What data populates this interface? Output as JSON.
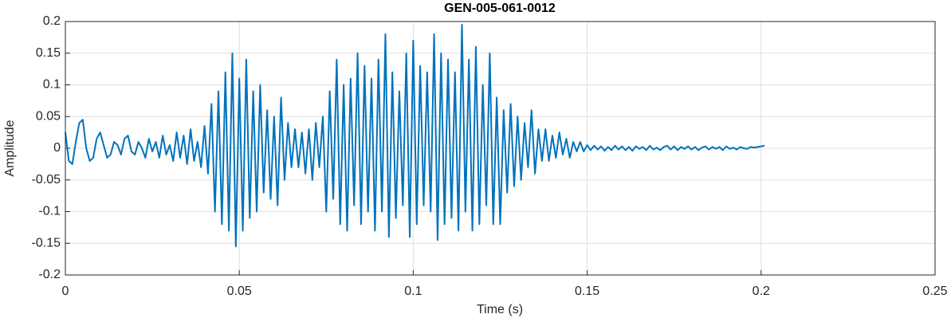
{
  "chart_data": {
    "type": "line",
    "title": "GEN-005-061-0012",
    "xlabel": "Time (s)",
    "ylabel": "Amplitude",
    "color": "#0072bd",
    "grid": true,
    "xlim": [
      0,
      0.25
    ],
    "ylim": [
      -0.2,
      0.2
    ],
    "xticks": [
      0,
      0.05,
      0.1,
      0.15,
      0.2,
      0.25
    ],
    "yticks": [
      -0.2,
      -0.15,
      -0.1,
      -0.05,
      0,
      0.05,
      0.1,
      0.15,
      0.2
    ],
    "x": [
      0,
      0.001,
      0.002,
      0.003,
      0.004,
      0.005,
      0.006,
      0.007,
      0.008,
      0.009,
      0.01,
      0.011,
      0.012,
      0.013,
      0.014,
      0.015,
      0.016,
      0.017,
      0.018,
      0.019,
      0.02,
      0.021,
      0.022,
      0.023,
      0.024,
      0.025,
      0.026,
      0.027,
      0.028,
      0.029,
      0.03,
      0.031,
      0.032,
      0.033,
      0.034,
      0.035,
      0.036,
      0.037,
      0.038,
      0.039,
      0.04,
      0.041,
      0.042,
      0.043,
      0.044,
      0.045,
      0.046,
      0.047,
      0.048,
      0.049,
      0.05,
      0.051,
      0.052,
      0.053,
      0.054,
      0.055,
      0.056,
      0.057,
      0.058,
      0.059,
      0.06,
      0.061,
      0.062,
      0.063,
      0.064,
      0.065,
      0.066,
      0.067,
      0.068,
      0.069,
      0.07,
      0.071,
      0.072,
      0.073,
      0.074,
      0.075,
      0.076,
      0.077,
      0.078,
      0.079,
      0.08,
      0.081,
      0.082,
      0.083,
      0.084,
      0.085,
      0.086,
      0.087,
      0.088,
      0.089,
      0.09,
      0.091,
      0.092,
      0.093,
      0.094,
      0.095,
      0.096,
      0.097,
      0.098,
      0.099,
      0.1,
      0.101,
      0.102,
      0.103,
      0.104,
      0.105,
      0.106,
      0.107,
      0.108,
      0.109,
      0.11,
      0.111,
      0.112,
      0.113,
      0.114,
      0.115,
      0.116,
      0.117,
      0.118,
      0.119,
      0.12,
      0.121,
      0.122,
      0.123,
      0.124,
      0.125,
      0.126,
      0.127,
      0.128,
      0.129,
      0.13,
      0.131,
      0.132,
      0.133,
      0.134,
      0.135,
      0.136,
      0.137,
      0.138,
      0.139,
      0.14,
      0.141,
      0.142,
      0.143,
      0.144,
      0.145,
      0.146,
      0.147,
      0.148,
      0.149,
      0.15,
      0.151,
      0.152,
      0.153,
      0.154,
      0.155,
      0.156,
      0.157,
      0.158,
      0.159,
      0.16,
      0.161,
      0.162,
      0.163,
      0.164,
      0.165,
      0.166,
      0.167,
      0.168,
      0.169,
      0.17,
      0.171,
      0.172,
      0.173,
      0.174,
      0.175,
      0.176,
      0.177,
      0.178,
      0.179,
      0.18,
      0.181,
      0.182,
      0.183,
      0.184,
      0.185,
      0.186,
      0.187,
      0.188,
      0.189,
      0.19,
      0.191,
      0.192,
      0.193,
      0.194,
      0.195,
      0.196,
      0.197,
      0.198,
      0.199,
      0.2,
      0.201
    ],
    "values": [
      0.025,
      -0.02,
      -0.025,
      0.01,
      0.04,
      0.045,
      0.0,
      -0.02,
      -0.015,
      0.015,
      0.025,
      0.005,
      -0.015,
      -0.01,
      0.01,
      0.005,
      -0.01,
      0.015,
      0.02,
      -0.005,
      -0.01,
      0.01,
      0.0,
      -0.015,
      0.015,
      -0.005,
      0.01,
      -0.015,
      0.02,
      -0.01,
      0.005,
      -0.02,
      0.025,
      -0.015,
      0.02,
      -0.025,
      0.03,
      -0.02,
      0.01,
      -0.03,
      0.035,
      -0.04,
      0.07,
      -0.1,
      0.09,
      -0.12,
      0.12,
      -0.13,
      0.15,
      -0.155,
      0.11,
      -0.13,
      0.14,
      -0.11,
      0.09,
      -0.1,
      0.1,
      -0.07,
      0.06,
      -0.08,
      0.05,
      -0.09,
      0.08,
      -0.05,
      0.04,
      -0.03,
      0.03,
      -0.03,
      0.025,
      -0.04,
      0.03,
      -0.05,
      0.04,
      -0.03,
      0.05,
      -0.1,
      0.09,
      -0.08,
      0.14,
      -0.12,
      0.1,
      -0.13,
      0.11,
      -0.09,
      0.15,
      -0.12,
      0.13,
      -0.1,
      0.11,
      -0.13,
      0.14,
      -0.1,
      0.18,
      -0.14,
      0.12,
      -0.11,
      0.09,
      -0.09,
      0.15,
      -0.14,
      0.17,
      -0.12,
      0.13,
      -0.09,
      0.12,
      -0.1,
      0.18,
      -0.145,
      0.15,
      -0.12,
      0.14,
      -0.11,
      0.12,
      -0.13,
      0.195,
      -0.1,
      0.14,
      -0.13,
      0.16,
      -0.12,
      0.1,
      -0.09,
      0.15,
      -0.12,
      0.08,
      -0.12,
      0.06,
      -0.07,
      0.07,
      -0.06,
      0.05,
      -0.05,
      0.04,
      -0.03,
      0.06,
      -0.04,
      0.03,
      -0.02,
      0.03,
      -0.02,
      0.02,
      -0.015,
      0.025,
      -0.01,
      0.015,
      -0.015,
      0.01,
      -0.005,
      0.01,
      -0.005,
      0.005,
      -0.003,
      0.004,
      -0.002,
      0.003,
      -0.004,
      0.002,
      -0.003,
      0.004,
      -0.002,
      0.003,
      -0.003,
      0.002,
      -0.004,
      0.003,
      -0.001,
      0.002,
      -0.003,
      0.004,
      -0.002,
      0.001,
      -0.003,
      0.002,
      0.004,
      -0.002,
      0.003,
      -0.003,
      0.002,
      -0.001,
      0.003,
      -0.002,
      0.002,
      -0.003,
      0.001,
      0.003,
      -0.002,
      0.002,
      -0.001,
      0.002,
      -0.003,
      0.003,
      -0.001,
      0.001,
      -0.002,
      0.002,
      0.0,
      -0.001,
      0.002,
      0.001,
      0.002,
      0.003,
      0.004
    ]
  }
}
